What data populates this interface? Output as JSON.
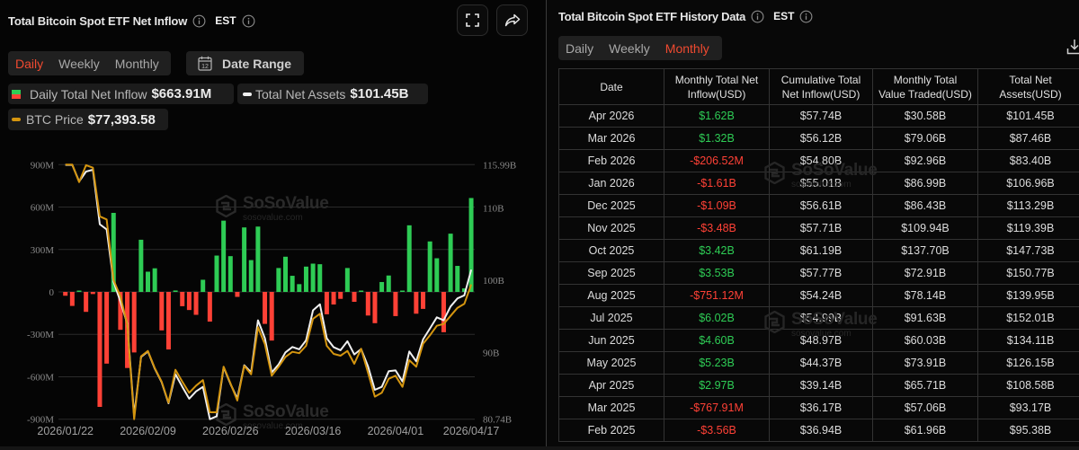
{
  "left_panel": {
    "title": "Total Bitcoin Spot ETF Net Inflow",
    "timezone": "EST",
    "tabs": [
      {
        "label": "Daily",
        "active": true
      },
      {
        "label": "Weekly",
        "active": false
      },
      {
        "label": "Monthly",
        "active": false
      }
    ],
    "date_range_label": "Date Range",
    "date_range_icon_text": "12",
    "legend": [
      {
        "label": "Daily Total Net Inflow",
        "value": "$663.91M",
        "icon": "green-red-square"
      },
      {
        "label": "Total Net Assets",
        "value": "$101.45B",
        "icon": "white-dash"
      },
      {
        "label": "BTC Price",
        "value": "$77,393.58",
        "icon": "orange-dash"
      }
    ],
    "buttons": {
      "fullscreen": "fullscreen-icon",
      "share": "share-icon"
    }
  },
  "right_panel": {
    "title": "Total Bitcoin Spot ETF History Data",
    "timezone": "EST",
    "tabs": [
      {
        "label": "Daily",
        "active": false
      },
      {
        "label": "Weekly",
        "active": false
      },
      {
        "label": "Monthly",
        "active": true
      }
    ],
    "table": {
      "headers": [
        {
          "lines": [
            "Date"
          ]
        },
        {
          "lines": [
            "Monthly Total Net",
            "Inflow(USD)"
          ]
        },
        {
          "lines": [
            "Cumulative Total",
            "Net Inflow(USD)"
          ]
        },
        {
          "lines": [
            "Monthly Total",
            "Value Traded(USD)"
          ]
        },
        {
          "lines": [
            "Total Net",
            "Assets(USD)"
          ]
        }
      ],
      "rows": [
        {
          "date": "Apr 2026",
          "net_inflow": "$1.62B",
          "cumulative_net_inflow": "$57.74B",
          "value_traded": "$30.58B",
          "total_net_assets": "$101.45B"
        },
        {
          "date": "Mar 2026",
          "net_inflow": "$1.32B",
          "cumulative_net_inflow": "$56.12B",
          "value_traded": "$79.06B",
          "total_net_assets": "$87.46B"
        },
        {
          "date": "Feb 2026",
          "net_inflow": "-$206.52M",
          "cumulative_net_inflow": "$54.80B",
          "value_traded": "$92.96B",
          "total_net_assets": "$83.40B"
        },
        {
          "date": "Jan 2026",
          "net_inflow": "-$1.61B",
          "cumulative_net_inflow": "$55.01B",
          "value_traded": "$86.99B",
          "total_net_assets": "$106.96B"
        },
        {
          "date": "Dec 2025",
          "net_inflow": "-$1.09B",
          "cumulative_net_inflow": "$56.61B",
          "value_traded": "$86.43B",
          "total_net_assets": "$113.29B"
        },
        {
          "date": "Nov 2025",
          "net_inflow": "-$3.48B",
          "cumulative_net_inflow": "$57.71B",
          "value_traded": "$109.94B",
          "total_net_assets": "$119.39B"
        },
        {
          "date": "Oct 2025",
          "net_inflow": "$3.42B",
          "cumulative_net_inflow": "$61.19B",
          "value_traded": "$137.70B",
          "total_net_assets": "$147.73B"
        },
        {
          "date": "Sep 2025",
          "net_inflow": "$3.53B",
          "cumulative_net_inflow": "$57.77B",
          "value_traded": "$72.91B",
          "total_net_assets": "$150.77B"
        },
        {
          "date": "Aug 2025",
          "net_inflow": "-$751.12M",
          "cumulative_net_inflow": "$54.24B",
          "value_traded": "$78.14B",
          "total_net_assets": "$139.95B"
        },
        {
          "date": "Jul 2025",
          "net_inflow": "$6.02B",
          "cumulative_net_inflow": "$54.99B",
          "value_traded": "$91.63B",
          "total_net_assets": "$152.01B"
        },
        {
          "date": "Jun 2025",
          "net_inflow": "$4.60B",
          "cumulative_net_inflow": "$48.97B",
          "value_traded": "$60.03B",
          "total_net_assets": "$134.11B"
        },
        {
          "date": "May 2025",
          "net_inflow": "$5.23B",
          "cumulative_net_inflow": "$44.37B",
          "value_traded": "$73.91B",
          "total_net_assets": "$126.15B"
        },
        {
          "date": "Apr 2025",
          "net_inflow": "$2.97B",
          "cumulative_net_inflow": "$39.14B",
          "value_traded": "$65.71B",
          "total_net_assets": "$108.58B"
        },
        {
          "date": "Mar 2025",
          "net_inflow": "-$767.91M",
          "cumulative_net_inflow": "$36.17B",
          "value_traded": "$57.06B",
          "total_net_assets": "$93.17B"
        },
        {
          "date": "Feb 2025",
          "net_inflow": "-$3.56B",
          "cumulative_net_inflow": "$36.94B",
          "value_traded": "$61.96B",
          "total_net_assets": "$95.38B"
        }
      ]
    }
  },
  "watermark": {
    "brand": "SoSoValue",
    "url": "sosovalue.com"
  },
  "colors": {
    "accent_active_tab": "#f04a30",
    "inflow_positive": "#2ecc55",
    "inflow_negative": "#ff4136",
    "net_assets_line": "#f0f0f0",
    "btc_price_line": "#d4950f",
    "background": "#050505"
  },
  "chart_data": {
    "type": "bar",
    "title": "Total Bitcoin Spot ETF Net Inflow",
    "xlabel": "",
    "ylabel": "",
    "grid": true,
    "legend_position": "top",
    "categories": [
      "2026/01/22",
      "2026/01/23",
      "2026/01/26",
      "2026/01/27",
      "2026/01/28",
      "2026/01/29",
      "2026/01/30",
      "2026/02/02",
      "2026/02/03",
      "2026/02/04",
      "2026/02/05",
      "2026/02/06",
      "2026/02/09",
      "2026/02/10",
      "2026/02/11",
      "2026/02/12",
      "2026/02/13",
      "2026/02/17",
      "2026/02/18",
      "2026/02/19",
      "2026/02/20",
      "2026/02/23",
      "2026/02/24",
      "2026/02/25",
      "2026/02/26",
      "2026/02/27",
      "2026/03/02",
      "2026/03/03",
      "2026/03/04",
      "2026/03/05",
      "2026/03/06",
      "2026/03/09",
      "2026/03/10",
      "2026/03/11",
      "2026/03/12",
      "2026/03/13",
      "2026/03/16",
      "2026/03/17",
      "2026/03/18",
      "2026/03/19",
      "2026/03/20",
      "2026/03/23",
      "2026/03/24",
      "2026/03/25",
      "2026/03/26",
      "2026/03/27",
      "2026/03/30",
      "2026/03/31",
      "2026/04/01",
      "2026/04/02",
      "2026/04/06",
      "2026/04/07",
      "2026/04/08",
      "2026/04/09",
      "2026/04/10",
      "2026/04/13",
      "2026/04/14",
      "2026/04/15",
      "2026/04/16",
      "2026/04/17"
    ],
    "x_ticks": [
      {
        "index": 0,
        "label": "2026/01/22"
      },
      {
        "index": 12,
        "label": "2026/02/09"
      },
      {
        "index": 24,
        "label": "2026/02/26"
      },
      {
        "index": 36,
        "label": "2026/03/16"
      },
      {
        "index": 48,
        "label": "2026/04/01"
      },
      {
        "index": 59,
        "label": "2026/04/17"
      }
    ],
    "series": [
      {
        "name": "Daily Total Net Inflow",
        "type": "bar",
        "axis": "left",
        "unit": "USD millions",
        "values": [
          -27,
          -99,
          2,
          -141,
          -15,
          -813,
          -507,
          559,
          -268,
          -538,
          -428,
          369,
          143,
          167,
          -272,
          -407,
          10,
          -101,
          -128,
          -162,
          86,
          -210,
          257,
          504,
          253,
          -35,
          456,
          225,
          462,
          -226,
          -344,
          169,
          249,
          114,
          55,
          179,
          200,
          196,
          -158,
          -89,
          -49,
          169,
          -70,
          5,
          -167,
          -221,
          70,
          116,
          -171,
          5,
          471,
          -154,
          -120,
          357,
          238,
          -285,
          412,
          184,
          25,
          663.91
        ]
      },
      {
        "name": "Total Net Assets",
        "type": "line",
        "axis": "right",
        "unit": "USD billions",
        "values": [
          115.95,
          115.95,
          113.66,
          115.03,
          115.28,
          107.73,
          107.02,
          99.76,
          97.06,
          93.94,
          81.2,
          89.37,
          90.12,
          87.72,
          85.85,
          82.94,
          86.97,
          85.22,
          83.57,
          84.6,
          85.22,
          80.74,
          81.15,
          87.93,
          85.63,
          83.6,
          88.21,
          87.22,
          94.44,
          91.95,
          87.22,
          88.34,
          89.99,
          90.74,
          90.42,
          91.66,
          95.81,
          96.65,
          91.95,
          90.7,
          90.29,
          91.54,
          89.71,
          90.45,
          88.05,
          84.81,
          85.22,
          87.38,
          87.5,
          85.97,
          90.12,
          88.75,
          91.79,
          93.32,
          94.85,
          94.44,
          96.35,
          97.47,
          97.89,
          101.45
        ]
      },
      {
        "name": "BTC Price",
        "type": "line",
        "axis": "hidden",
        "unit": "USD",
        "range": [
          63450,
          89800
        ],
        "values": [
          89800,
          89800,
          88000,
          89740,
          89480,
          84440,
          84130,
          77860,
          76160,
          73210,
          63450,
          69960,
          70520,
          68720,
          67330,
          65160,
          68560,
          67330,
          66180,
          66930,
          67490,
          64170,
          64170,
          68880,
          67170,
          65380,
          68970,
          68100,
          72970,
          71200,
          67950,
          68880,
          69900,
          70420,
          70280,
          71050,
          73840,
          74370,
          71050,
          70210,
          70020,
          70520,
          69190,
          70740,
          68260,
          65780,
          66180,
          67630,
          67950,
          66800,
          69560,
          68880,
          71260,
          72130,
          73120,
          73310,
          74140,
          74980,
          75390,
          77393.58
        ]
      }
    ],
    "y_left": {
      "range": [
        -900,
        900
      ],
      "ticks": [
        900,
        600,
        300,
        0,
        -300,
        -600,
        -900
      ],
      "tick_labels": [
        "900M",
        "600M",
        "300M",
        "0",
        "-300M",
        "-600M",
        "-900M"
      ]
    },
    "y_right": {
      "range": [
        80.74,
        115.99
      ],
      "ticks": [
        115.99,
        110,
        100,
        90,
        80.74
      ],
      "tick_labels": [
        "115.99B",
        "110B",
        "100B",
        "90B",
        "80.74B"
      ]
    }
  }
}
